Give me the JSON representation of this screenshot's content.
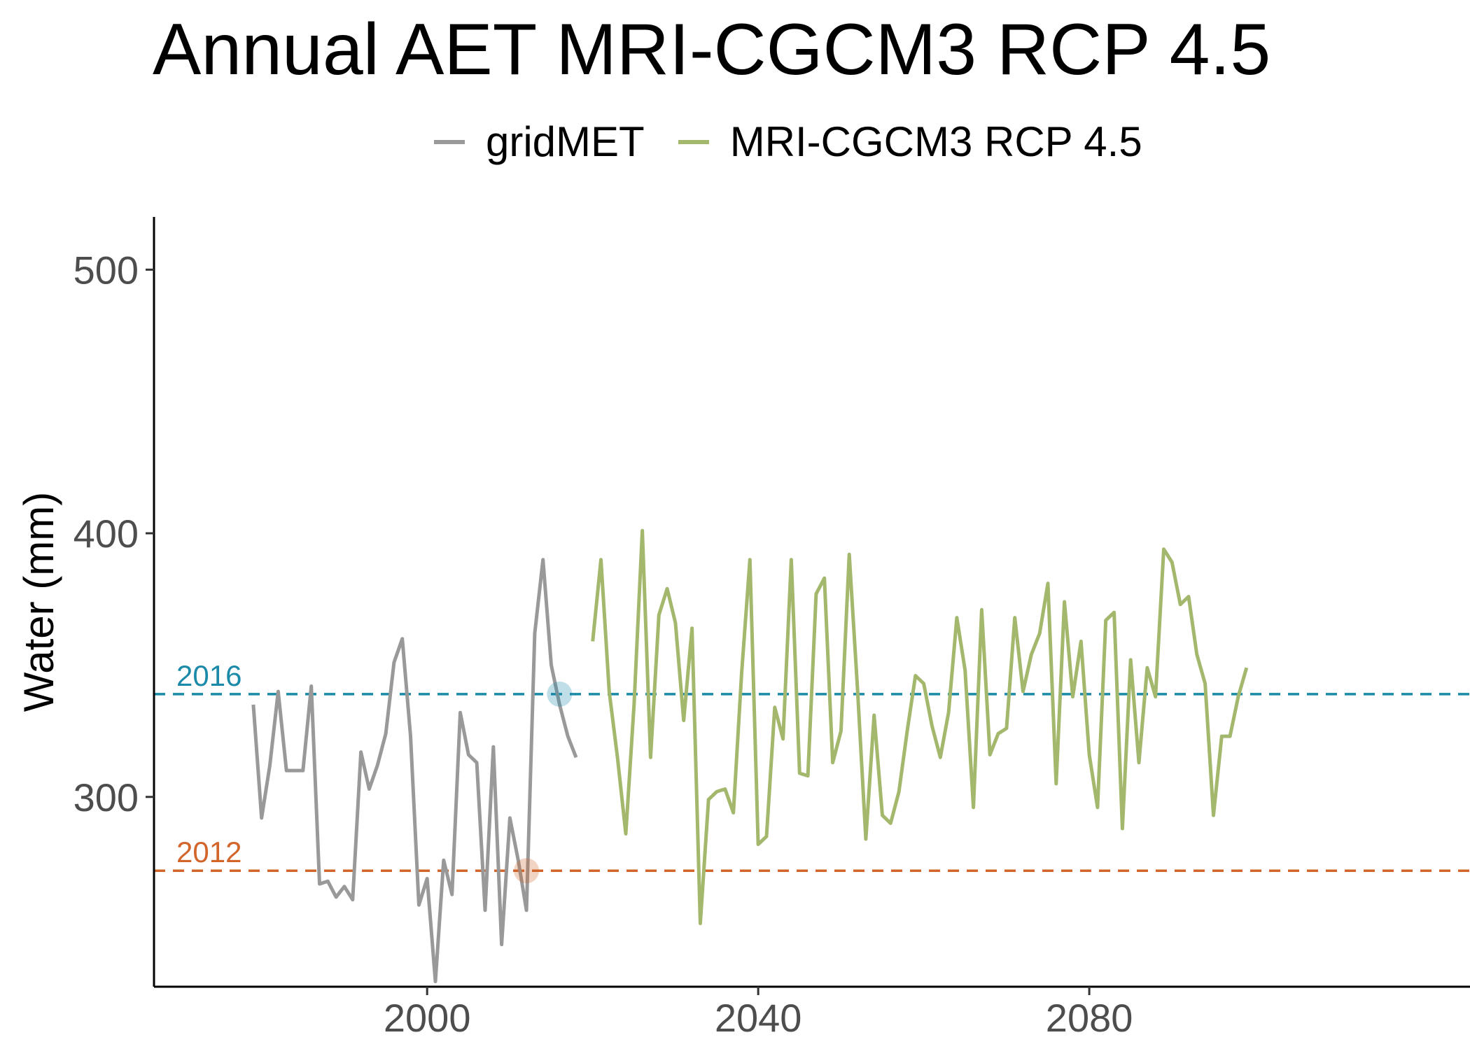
{
  "chart_data": {
    "type": "line",
    "title": "Annual AET MRI-CGCM3 RCP 4.5",
    "xlabel": "",
    "ylabel": "Water (mm)",
    "xlim": [
      1967,
      2126
    ],
    "ylim": [
      228,
      520
    ],
    "x_ticks": [
      2000,
      2040,
      2080
    ],
    "y_ticks": [
      300,
      400,
      500
    ],
    "grid": false,
    "legend_position": "top",
    "series": [
      {
        "name": "gridMET",
        "color": "#999999",
        "x": [
          1979,
          1980,
          1981,
          1982,
          1983,
          1984,
          1985,
          1986,
          1987,
          1988,
          1989,
          1990,
          1991,
          1992,
          1993,
          1994,
          1995,
          1996,
          1997,
          1998,
          1999,
          2000,
          2001,
          2002,
          2003,
          2004,
          2005,
          2006,
          2007,
          2008,
          2009,
          2010,
          2011,
          2012,
          2013,
          2014,
          2015,
          2016,
          2017,
          2018
        ],
        "values": [
          335,
          292,
          312,
          340,
          310,
          310,
          310,
          342,
          267,
          268,
          262,
          266,
          261,
          317,
          303,
          312,
          324,
          351,
          360,
          323,
          259,
          269,
          230,
          276,
          263,
          332,
          316,
          313,
          257,
          319,
          244,
          292,
          276,
          257,
          362,
          390,
          350,
          335,
          323,
          315
        ]
      },
      {
        "name": "MRI-CGCM3 RCP 4.5",
        "color": "#a3b86c",
        "x": [
          2020,
          2021,
          2022,
          2023,
          2024,
          2025,
          2026,
          2027,
          2028,
          2029,
          2030,
          2031,
          2032,
          2033,
          2034,
          2035,
          2036,
          2037,
          2038,
          2039,
          2040,
          2041,
          2042,
          2043,
          2044,
          2045,
          2046,
          2047,
          2048,
          2049,
          2050,
          2051,
          2052,
          2053,
          2054,
          2055,
          2056,
          2057,
          2058,
          2059,
          2060,
          2061,
          2062,
          2063,
          2064,
          2065,
          2066,
          2067,
          2068,
          2069,
          2070,
          2071,
          2072,
          2073,
          2074,
          2075,
          2076,
          2077,
          2078,
          2079,
          2080,
          2081,
          2082,
          2083,
          2084,
          2085,
          2086,
          2087,
          2088,
          2089,
          2090,
          2091,
          2092,
          2093,
          2094,
          2095,
          2096,
          2097,
          2098,
          2099
        ],
        "values": [
          359,
          390,
          340,
          315,
          286,
          335,
          401,
          315,
          369,
          379,
          366,
          329,
          364,
          252,
          299,
          302,
          303,
          294,
          347,
          390,
          282,
          285,
          334,
          322,
          390,
          309,
          308,
          377,
          383,
          313,
          325,
          392,
          341,
          284,
          331,
          293,
          290,
          302,
          325,
          346,
          343,
          327,
          315,
          332,
          368,
          348,
          296,
          371,
          316,
          324,
          326,
          368,
          340,
          354,
          362,
          381,
          305,
          374,
          338,
          359,
          316,
          296,
          367,
          370,
          288,
          352,
          313,
          349,
          338,
          394,
          389,
          373,
          376,
          354,
          343,
          293,
          323,
          323,
          338,
          349
        ]
      }
    ],
    "reference_lines": [
      {
        "label": "2016",
        "y": 339,
        "color": "#1a8aa8",
        "marker_x": 2016
      },
      {
        "label": "2012",
        "y": 272,
        "color": "#d2652a",
        "marker_x": 2012
      }
    ]
  }
}
